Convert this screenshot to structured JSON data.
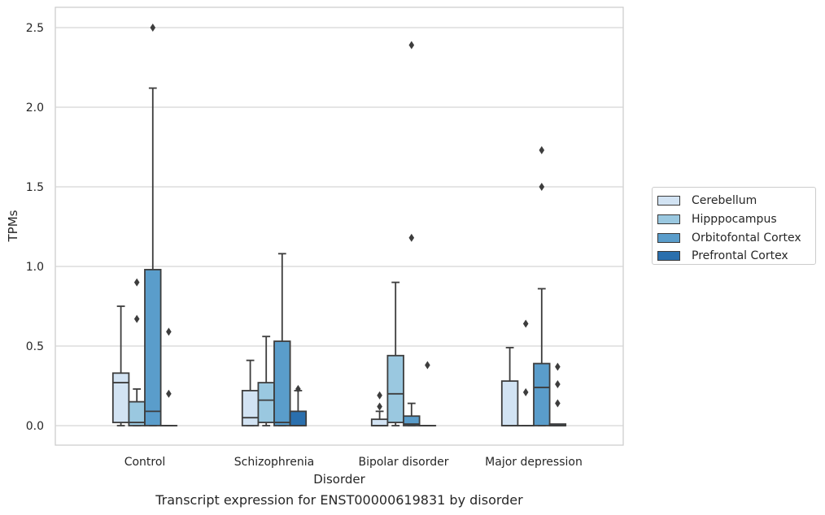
{
  "caption": "Transcript expression for ENST00000619831 by disorder",
  "chart_data": {
    "type": "box",
    "title": "",
    "xlabel": "Disorder",
    "ylabel": "TPMs",
    "ylim": [
      -0.12,
      2.63
    ],
    "yticks": [
      "0.0",
      "0.5",
      "1.0",
      "1.5",
      "2.0",
      "2.5"
    ],
    "grid": true,
    "legend_position": "right",
    "categories": [
      "Control",
      "Schizophrenia",
      "Bipolar disorder",
      "Major depression"
    ],
    "series": [
      {
        "name": "Cerebellum",
        "color": "#d2e3f3",
        "boxes": [
          {
            "q1": 0.02,
            "median": 0.27,
            "q3": 0.33,
            "whisker_low": 0.0,
            "whisker_high": 0.75,
            "outliers": []
          },
          {
            "q1": 0.0,
            "median": 0.05,
            "q3": 0.22,
            "whisker_low": 0.0,
            "whisker_high": 0.41,
            "outliers": []
          },
          {
            "q1": 0.0,
            "median": 0.0,
            "q3": 0.04,
            "whisker_low": 0.0,
            "whisker_high": 0.09,
            "outliers": [
              0.12,
              0.19
            ]
          },
          {
            "q1": 0.0,
            "median": 0.0,
            "q3": 0.28,
            "whisker_low": 0.0,
            "whisker_high": 0.49,
            "outliers": []
          }
        ]
      },
      {
        "name": "Hipppocampus",
        "color": "#9ac8e0",
        "boxes": [
          {
            "q1": 0.0,
            "median": 0.02,
            "q3": 0.15,
            "whisker_low": 0.0,
            "whisker_high": 0.23,
            "outliers": [
              0.67,
              0.9
            ]
          },
          {
            "q1": 0.02,
            "median": 0.16,
            "q3": 0.27,
            "whisker_low": 0.0,
            "whisker_high": 0.56,
            "outliers": []
          },
          {
            "q1": 0.02,
            "median": 0.2,
            "q3": 0.44,
            "whisker_low": 0.0,
            "whisker_high": 0.9,
            "outliers": []
          },
          {
            "q1": 0.0,
            "median": 0.0,
            "q3": 0.0,
            "whisker_low": 0.0,
            "whisker_high": 0.0,
            "outliers": [
              0.21,
              0.64
            ]
          }
        ]
      },
      {
        "name": "Orbitofontal Cortex",
        "color": "#5a9dcb",
        "boxes": [
          {
            "q1": 0.0,
            "median": 0.09,
            "q3": 0.98,
            "whisker_low": 0.0,
            "whisker_high": 2.12,
            "outliers": [
              2.5
            ]
          },
          {
            "q1": 0.0,
            "median": 0.02,
            "q3": 0.53,
            "whisker_low": 0.0,
            "whisker_high": 1.08,
            "outliers": []
          },
          {
            "q1": 0.0,
            "median": 0.01,
            "q3": 0.06,
            "whisker_low": 0.0,
            "whisker_high": 0.14,
            "outliers": [
              1.18,
              2.39
            ]
          },
          {
            "q1": 0.0,
            "median": 0.24,
            "q3": 0.39,
            "whisker_low": 0.0,
            "whisker_high": 0.86,
            "outliers": [
              1.5,
              1.73
            ]
          }
        ]
      },
      {
        "name": "Prefrontal Cortex",
        "color": "#2a6fad",
        "boxes": [
          {
            "q1": 0.0,
            "median": 0.0,
            "q3": 0.0,
            "whisker_low": 0.0,
            "whisker_high": 0.0,
            "outliers": [
              0.2,
              0.59
            ]
          },
          {
            "q1": 0.0,
            "median": 0.0,
            "q3": 0.09,
            "whisker_low": 0.0,
            "whisker_high": 0.22,
            "outliers": [
              0.23
            ]
          },
          {
            "q1": 0.0,
            "median": 0.0,
            "q3": 0.0,
            "whisker_low": 0.0,
            "whisker_high": 0.0,
            "outliers": [
              0.38
            ]
          },
          {
            "q1": 0.0,
            "median": 0.0,
            "q3": 0.01,
            "whisker_low": 0.0,
            "whisker_high": 0.01,
            "outliers": [
              0.14,
              0.26,
              0.37
            ]
          }
        ]
      }
    ]
  }
}
